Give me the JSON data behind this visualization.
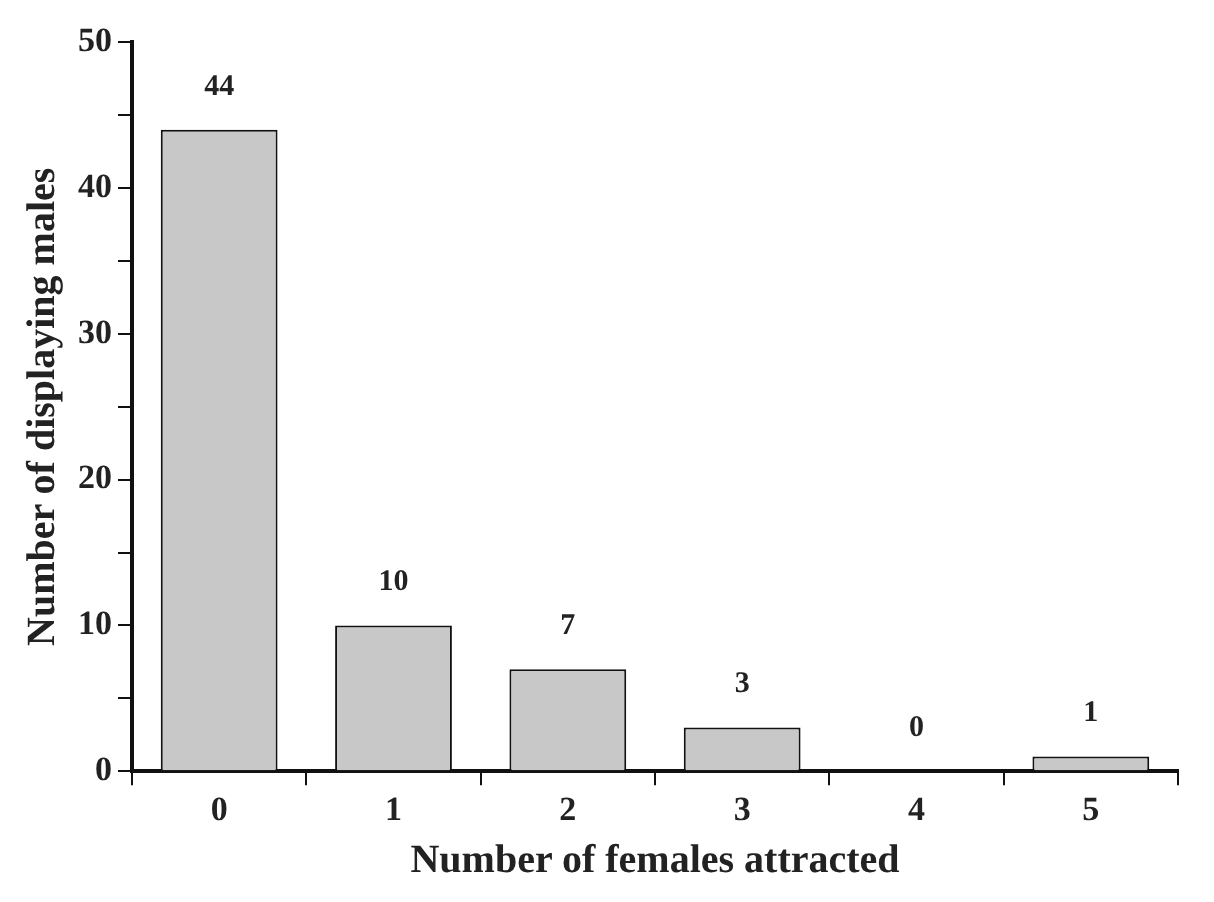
{
  "chart_data": {
    "type": "bar",
    "xlabel": "Number of females attracted",
    "ylabel": "Number of displaying males",
    "categories": [
      "0",
      "1",
      "2",
      "3",
      "4",
      "5"
    ],
    "values": [
      44,
      10,
      7,
      3,
      0,
      1
    ],
    "color": "#c8c8c8",
    "data_labels": true,
    "grid": false,
    "legend": false,
    "ylim": [
      0,
      50
    ],
    "yticks": [
      0,
      {
        "value": 5,
        "label": null
      },
      10,
      {
        "value": 15,
        "label": null
      },
      20,
      {
        "value": 25,
        "label": null
      },
      30,
      {
        "value": 35,
        "label": null
      },
      40,
      {
        "value": 45,
        "label": null
      },
      50
    ]
  }
}
